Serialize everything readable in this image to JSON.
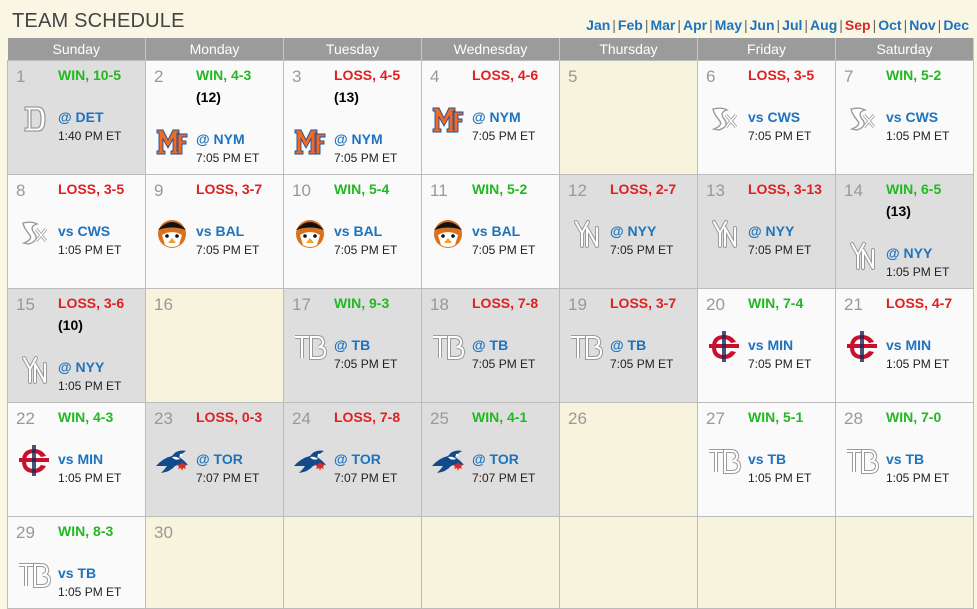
{
  "header": {
    "title": "TEAM SCHEDULE",
    "months": [
      "Jan",
      "Feb",
      "Mar",
      "Apr",
      "May",
      "Jun",
      "Jul",
      "Aug",
      "Sep",
      "Oct",
      "Nov",
      "Dec"
    ],
    "active_month": "Sep"
  },
  "weekdays": [
    "Sunday",
    "Monday",
    "Tuesday",
    "Wednesday",
    "Thursday",
    "Friday",
    "Saturday"
  ],
  "colors": {
    "win": "#22b822",
    "loss": "#e02020",
    "opponent_link": "#1e73be",
    "active_month": "#d62a2a",
    "weekday_header_bg": "#9b9b9b"
  },
  "weeks": [
    [
      {
        "day": "1",
        "bg": "gray",
        "result": "WIN, 10-5",
        "outcome": "win",
        "opponent": "@ DET",
        "time": "1:40 PM ET",
        "logo": "tigers-logo-icon"
      },
      {
        "day": "2",
        "bg": "white",
        "result": "WIN, 4-3",
        "outcome": "win",
        "extra": "(12)",
        "opponent": "@ NYM",
        "time": "7:05 PM ET",
        "logo": "mets-logo-icon"
      },
      {
        "day": "3",
        "bg": "white",
        "result": "LOSS, 4-5",
        "outcome": "loss",
        "extra": "(13)",
        "opponent": "@ NYM",
        "time": "7:05 PM ET",
        "logo": "mets-logo-icon"
      },
      {
        "day": "4",
        "bg": "white",
        "result": "LOSS, 4-6",
        "outcome": "loss",
        "opponent": "@ NYM",
        "time": "7:05 PM ET",
        "logo": "mets-logo-icon"
      },
      {
        "day": "5",
        "bg": "empty"
      },
      {
        "day": "6",
        "bg": "white",
        "result": "LOSS, 3-5",
        "outcome": "loss",
        "opponent": "vs CWS",
        "time": "7:05 PM ET",
        "logo": "white-sox-logo-icon"
      },
      {
        "day": "7",
        "bg": "white",
        "result": "WIN, 5-2",
        "outcome": "win",
        "opponent": "vs CWS",
        "time": "1:05 PM ET",
        "logo": "white-sox-logo-icon"
      }
    ],
    [
      {
        "day": "8",
        "bg": "white",
        "result": "LOSS, 3-5",
        "outcome": "loss",
        "opponent": "vs CWS",
        "time": "1:05 PM ET",
        "logo": "white-sox-logo-icon"
      },
      {
        "day": "9",
        "bg": "white",
        "result": "LOSS, 3-7",
        "outcome": "loss",
        "opponent": "vs BAL",
        "time": "7:05 PM ET",
        "logo": "orioles-logo-icon"
      },
      {
        "day": "10",
        "bg": "white",
        "result": "WIN, 5-4",
        "outcome": "win",
        "opponent": "vs BAL",
        "time": "7:05 PM ET",
        "logo": "orioles-logo-icon"
      },
      {
        "day": "11",
        "bg": "white",
        "result": "WIN, 5-2",
        "outcome": "win",
        "opponent": "vs BAL",
        "time": "7:05 PM ET",
        "logo": "orioles-logo-icon"
      },
      {
        "day": "12",
        "bg": "gray",
        "result": "LOSS, 2-7",
        "outcome": "loss",
        "opponent": "@ NYY",
        "time": "7:05 PM ET",
        "logo": "yankees-logo-icon"
      },
      {
        "day": "13",
        "bg": "gray",
        "result": "LOSS, 3-13",
        "outcome": "loss",
        "opponent": "@ NYY",
        "time": "7:05 PM ET",
        "logo": "yankees-logo-icon"
      },
      {
        "day": "14",
        "bg": "gray",
        "result": "WIN, 6-5",
        "outcome": "win",
        "extra": "(13)",
        "opponent": "@ NYY",
        "time": "1:05 PM ET",
        "logo": "yankees-logo-icon"
      }
    ],
    [
      {
        "day": "15",
        "bg": "gray",
        "result": "LOSS, 3-6",
        "outcome": "loss",
        "extra": "(10)",
        "opponent": "@ NYY",
        "time": "1:05 PM ET",
        "logo": "yankees-logo-icon"
      },
      {
        "day": "16",
        "bg": "empty"
      },
      {
        "day": "17",
        "bg": "gray",
        "result": "WIN, 9-3",
        "outcome": "win",
        "opponent": "@ TB",
        "time": "7:05 PM ET",
        "logo": "rays-logo-icon"
      },
      {
        "day": "18",
        "bg": "gray",
        "result": "LOSS, 7-8",
        "outcome": "loss",
        "opponent": "@ TB",
        "time": "7:05 PM ET",
        "logo": "rays-logo-icon"
      },
      {
        "day": "19",
        "bg": "gray",
        "result": "LOSS, 3-7",
        "outcome": "loss",
        "opponent": "@ TB",
        "time": "7:05 PM ET",
        "logo": "rays-logo-icon"
      },
      {
        "day": "20",
        "bg": "white",
        "result": "WIN, 7-4",
        "outcome": "win",
        "opponent": "vs MIN",
        "time": "7:05 PM ET",
        "logo": "twins-logo-icon"
      },
      {
        "day": "21",
        "bg": "white",
        "result": "LOSS, 4-7",
        "outcome": "loss",
        "opponent": "vs MIN",
        "time": "1:05 PM ET",
        "logo": "twins-logo-icon"
      }
    ],
    [
      {
        "day": "22",
        "bg": "white",
        "result": "WIN, 4-3",
        "outcome": "win",
        "opponent": "vs MIN",
        "time": "1:05 PM ET",
        "logo": "twins-logo-icon"
      },
      {
        "day": "23",
        "bg": "gray",
        "result": "LOSS, 0-3",
        "outcome": "loss",
        "opponent": "@ TOR",
        "time": "7:07 PM ET",
        "logo": "blue-jays-logo-icon"
      },
      {
        "day": "24",
        "bg": "gray",
        "result": "LOSS, 7-8",
        "outcome": "loss",
        "opponent": "@ TOR",
        "time": "7:07 PM ET",
        "logo": "blue-jays-logo-icon"
      },
      {
        "day": "25",
        "bg": "gray",
        "result": "WIN, 4-1",
        "outcome": "win",
        "opponent": "@ TOR",
        "time": "7:07 PM ET",
        "logo": "blue-jays-logo-icon"
      },
      {
        "day": "26",
        "bg": "empty"
      },
      {
        "day": "27",
        "bg": "white",
        "result": "WIN, 5-1",
        "outcome": "win",
        "opponent": "vs TB",
        "time": "1:05 PM ET",
        "logo": "rays-logo-icon"
      },
      {
        "day": "28",
        "bg": "white",
        "result": "WIN, 7-0",
        "outcome": "win",
        "opponent": "vs TB",
        "time": "1:05 PM ET",
        "logo": "rays-logo-icon"
      }
    ],
    [
      {
        "day": "29",
        "bg": "white",
        "result": "WIN, 8-3",
        "outcome": "win",
        "opponent": "vs TB",
        "time": "1:05 PM ET",
        "logo": "rays-logo-icon"
      },
      {
        "day": "30",
        "bg": "empty"
      },
      {
        "day": "",
        "bg": "empty"
      },
      {
        "day": "",
        "bg": "empty"
      },
      {
        "day": "",
        "bg": "empty"
      },
      {
        "day": "",
        "bg": "empty"
      },
      {
        "day": "",
        "bg": "empty"
      }
    ]
  ]
}
